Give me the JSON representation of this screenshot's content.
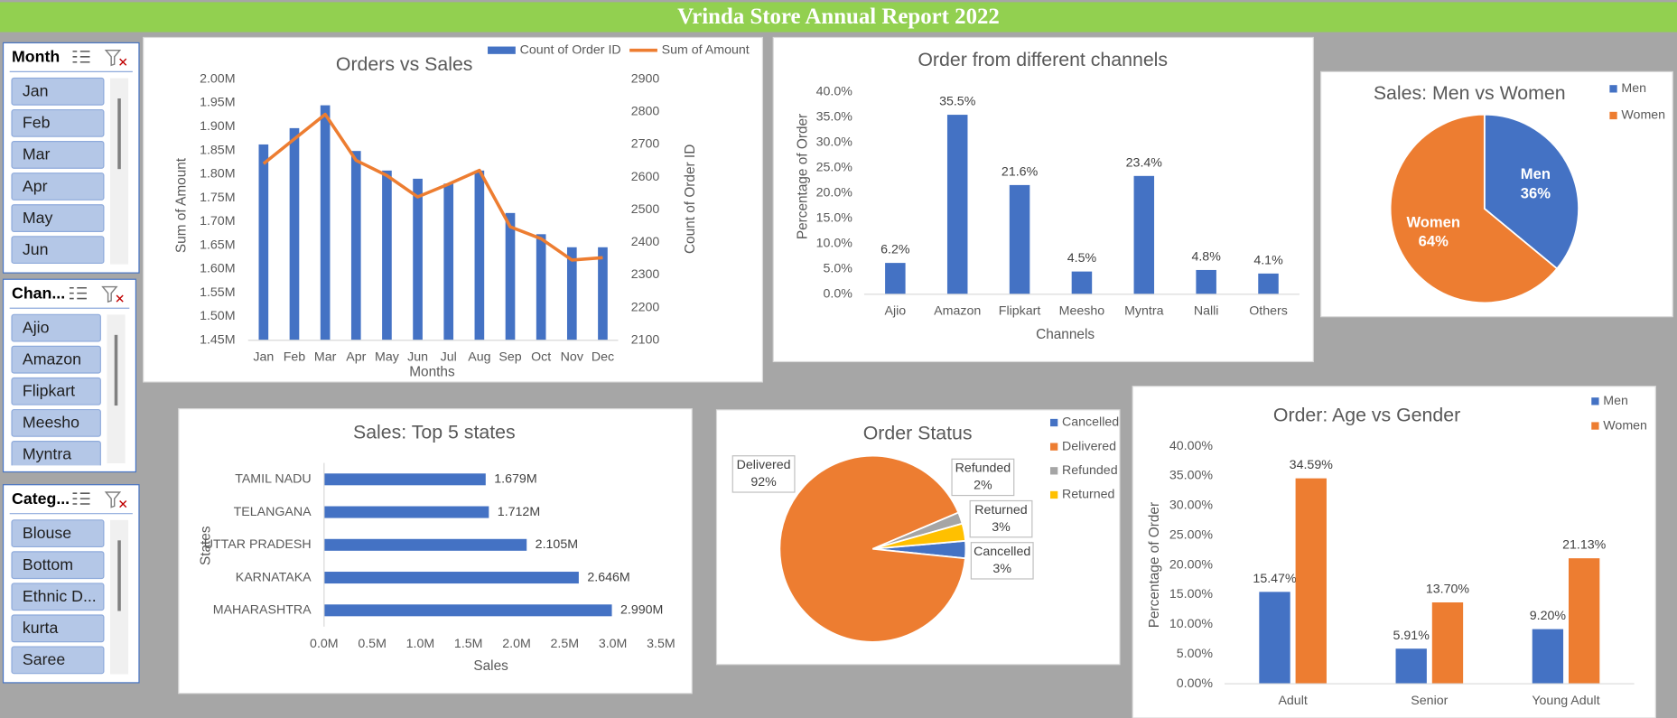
{
  "header": {
    "title": "Vrinda Store Annual Report 2022"
  },
  "slicers": [
    {
      "title": "Month",
      "items": [
        "Jan",
        "Feb",
        "Mar",
        "Apr",
        "May",
        "Jun"
      ]
    },
    {
      "title": "Chan...",
      "items": [
        "Ajio",
        "Amazon",
        "Flipkart",
        "Meesho",
        "Myntra"
      ]
    },
    {
      "title": "Categ...",
      "items": [
        "Blouse",
        "Bottom",
        "Ethnic D...",
        "kurta",
        "Saree"
      ]
    }
  ],
  "chart_data": [
    {
      "type": "combo",
      "title": "Orders vs Sales",
      "categories": [
        "Jan",
        "Feb",
        "Mar",
        "Apr",
        "May",
        "Jun",
        "Jul",
        "Aug",
        "Sep",
        "Oct",
        "Nov",
        "Dec"
      ],
      "series": [
        {
          "name": "Count of Order ID",
          "type": "bar",
          "axis": "y2",
          "color": "#4472c4",
          "values": [
            2700,
            2750,
            2820,
            2680,
            2620,
            2595,
            2580,
            2620,
            2490,
            2425,
            2385,
            2385
          ]
        },
        {
          "name": "Sum of Amount",
          "type": "line",
          "color": "#ed7d31",
          "values": [
            1822000,
            1874000,
            1926000,
            1829000,
            1797000,
            1752000,
            1779000,
            1808000,
            1689000,
            1664000,
            1619000,
            1624000
          ]
        }
      ],
      "xlabel": "Months",
      "ylabel": "Sum of Amount",
      "y2label": "Count of Order ID",
      "ylim": [
        1450000,
        2000000
      ],
      "yticks": [
        {
          "value": 1450000,
          "label": "1.45M"
        },
        {
          "value": 1500000,
          "label": "1.50M"
        },
        {
          "value": 1550000,
          "label": "1.55M"
        },
        {
          "value": 1600000,
          "label": "1.60M"
        },
        {
          "value": 1650000,
          "label": "1.65M"
        },
        {
          "value": 1700000,
          "label": "1.70M"
        },
        {
          "value": 1750000,
          "label": "1.75M"
        },
        {
          "value": 1800000,
          "label": "1.80M"
        },
        {
          "value": 1850000,
          "label": "1.85M"
        },
        {
          "value": 1900000,
          "label": "1.90M"
        },
        {
          "value": 1950000,
          "label": "1.95M"
        },
        {
          "value": 2000000,
          "label": "2.00M"
        }
      ],
      "y2lim": [
        2100,
        2900
      ],
      "y2ticks": [
        2100,
        2200,
        2300,
        2400,
        2500,
        2600,
        2700,
        2800,
        2900
      ],
      "grid": false,
      "legend": "top"
    },
    {
      "type": "bar",
      "title": "Order from different channels",
      "categories": [
        "Ajio",
        "Amazon",
        "Flipkart",
        "Meesho",
        "Myntra",
        "Nalli",
        "Others"
      ],
      "values": [
        6.2,
        35.5,
        21.6,
        4.5,
        23.4,
        4.8,
        4.1
      ],
      "value_labels": [
        "6.2%",
        "35.5%",
        "21.6%",
        "4.5%",
        "23.4%",
        "4.8%",
        "4.1%"
      ],
      "color": "#4472c4",
      "xlabel": "Channels",
      "ylabel": "Percentage of Order",
      "ylim": [
        0,
        40
      ],
      "yticks": [
        {
          "value": 0,
          "label": "0.0%"
        },
        {
          "value": 5,
          "label": "5.0%"
        },
        {
          "value": 10,
          "label": "10.0%"
        },
        {
          "value": 15,
          "label": "15.0%"
        },
        {
          "value": 20,
          "label": "20.0%"
        },
        {
          "value": 25,
          "label": "25.0%"
        },
        {
          "value": 30,
          "label": "30.0%"
        },
        {
          "value": 35,
          "label": "35.0%"
        },
        {
          "value": 40,
          "label": "40.0%"
        }
      ],
      "grid": false
    },
    {
      "type": "pie",
      "title": "Sales: Men vs Women",
      "categories": [
        "Men",
        "Women"
      ],
      "values": [
        36,
        64
      ],
      "value_labels": [
        "36%",
        "64%"
      ],
      "colors": [
        "#4472c4",
        "#ed7d31"
      ],
      "legend": "right"
    },
    {
      "type": "barh",
      "title": "Sales: Top 5 states",
      "categories": [
        "TAMIL NADU",
        "TELANGANA",
        "UTTAR PRADESH",
        "KARNATAKA",
        "MAHARASHTRA"
      ],
      "values": [
        1679000,
        1712000,
        2105000,
        2646000,
        2990000
      ],
      "value_labels": [
        "1.679M",
        "1.712M",
        "2.105M",
        "2.646M",
        "2.990M"
      ],
      "color": "#4472c4",
      "xlabel": "Sales",
      "ylabel": "States",
      "xlim": [
        0,
        3500000
      ],
      "xticks": [
        {
          "value": 0,
          "label": "0.0M"
        },
        {
          "value": 500000,
          "label": "0.5M"
        },
        {
          "value": 1000000,
          "label": "1.0M"
        },
        {
          "value": 1500000,
          "label": "1.5M"
        },
        {
          "value": 2000000,
          "label": "2.0M"
        },
        {
          "value": 2500000,
          "label": "2.5M"
        },
        {
          "value": 3000000,
          "label": "3.0M"
        },
        {
          "value": 3500000,
          "label": "3.5M"
        }
      ],
      "grid": false
    },
    {
      "type": "pie",
      "title": "Order Status",
      "categories": [
        "Cancelled",
        "Delivered",
        "Refunded",
        "Returned"
      ],
      "values": [
        3,
        92,
        2,
        3
      ],
      "value_labels": [
        "3%",
        "92%",
        "2%",
        "3%"
      ],
      "colors": [
        "#4472c4",
        "#ed7d31",
        "#a5a5a5",
        "#ffc000"
      ],
      "legend": "right"
    },
    {
      "type": "bar",
      "title": "Order: Age vs Gender",
      "categories": [
        "Adult",
        "Senior",
        "Young Adult"
      ],
      "series": [
        {
          "name": "Men",
          "color": "#4472c4",
          "values": [
            15.47,
            5.91,
            9.2
          ],
          "value_labels": [
            "15.47%",
            "5.91%",
            "9.20%"
          ]
        },
        {
          "name": "Women",
          "color": "#ed7d31",
          "values": [
            34.59,
            13.7,
            21.13
          ],
          "value_labels": [
            "34.59%",
            "13.70%",
            "21.13%"
          ]
        }
      ],
      "ylabel": "Percentage of Order",
      "ylim": [
        0,
        40
      ],
      "yticks": [
        {
          "value": 0,
          "label": "0.00%"
        },
        {
          "value": 5,
          "label": "5.00%"
        },
        {
          "value": 10,
          "label": "10.00%"
        },
        {
          "value": 15,
          "label": "15.00%"
        },
        {
          "value": 20,
          "label": "20.00%"
        },
        {
          "value": 25,
          "label": "25.00%"
        },
        {
          "value": 30,
          "label": "30.00%"
        },
        {
          "value": 35,
          "label": "35.00%"
        },
        {
          "value": 40,
          "label": "40.00%"
        }
      ],
      "grid": false,
      "legend": "top-right"
    }
  ]
}
